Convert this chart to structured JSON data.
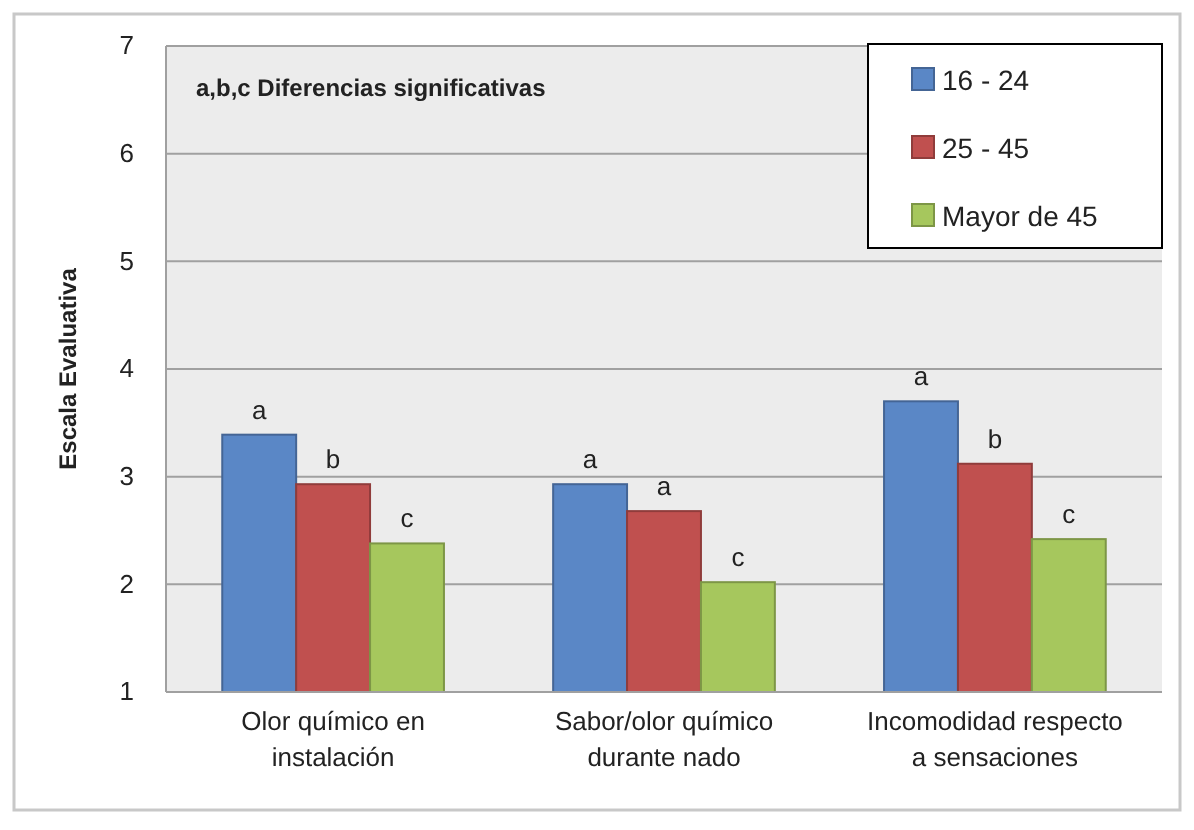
{
  "chart_data": {
    "type": "bar",
    "ylabel": "Escala  Evaluativa",
    "categories": [
      "Olor químico en instalación",
      "Sabor/olor químico durante nado",
      "Incomodidad respecto a sensaciones"
    ],
    "series": [
      {
        "name": "16 - 24",
        "color": "#5a87c6",
        "values": [
          3.39,
          2.93,
          3.7
        ],
        "value_labels": [
          "a",
          "a",
          "a"
        ]
      },
      {
        "name": "25 - 45",
        "color": "#c0504f",
        "values": [
          2.93,
          2.68,
          3.12
        ],
        "value_labels": [
          "b",
          "a",
          "b"
        ]
      },
      {
        "name": "Mayor de 45",
        "color": "#a6c75d",
        "values": [
          2.38,
          2.02,
          2.42
        ],
        "value_labels": [
          "c",
          "c",
          "c"
        ]
      }
    ],
    "ylim": [
      1,
      7
    ],
    "yticks": [
      1,
      2,
      3,
      4,
      5,
      6,
      7
    ],
    "grid": "y",
    "legend": "top right",
    "annotations": [
      "a,b,c  Diferencias significativas"
    ]
  }
}
